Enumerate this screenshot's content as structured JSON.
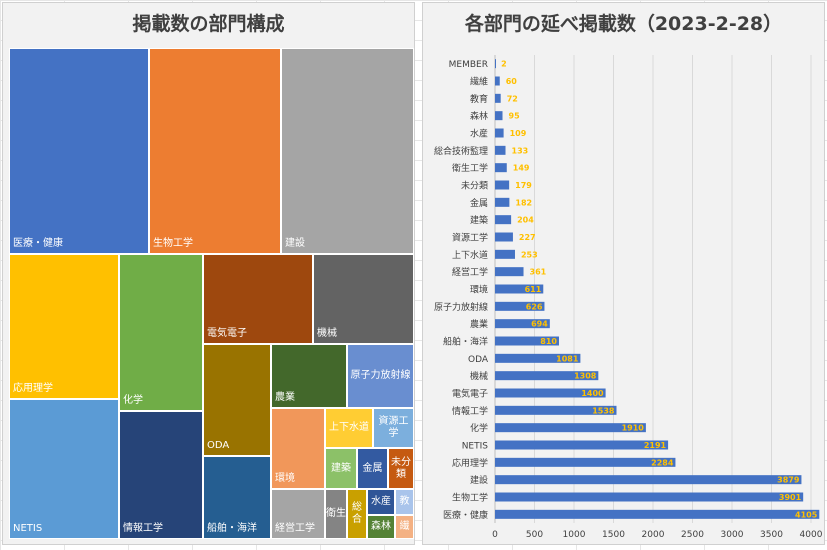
{
  "colors": {
    "background": "#f2f2f2",
    "bar": "#4472c4",
    "data_label": "#ffc000",
    "text": "#404040",
    "gridline": "#d9d9d9"
  },
  "chart_data": [
    {
      "type": "treemap",
      "title": "掲載数の部門構成",
      "labels": [
        "医療・健康",
        "生物工学",
        "建設",
        "応用理学",
        "NETIS",
        "化学",
        "情報工学",
        "電気電子",
        "機械",
        "ODA",
        "船舶・海洋",
        "農業",
        "原子力放射線",
        "環境",
        "上下水道",
        "資源工学",
        "建築",
        "金属",
        "未分類",
        "経営工学",
        "衛生",
        "総合",
        "水産",
        "森林",
        "教",
        "繊"
      ],
      "values": [
        4105,
        3901,
        3879,
        2284,
        2191,
        1910,
        1538,
        1400,
        1308,
        1081,
        810,
        694,
        626,
        611,
        253,
        227,
        204,
        182,
        179,
        361,
        149,
        133,
        109,
        95,
        72,
        60
      ],
      "colors": [
        "#4472c4",
        "#ed7d31",
        "#a5a5a5",
        "#ffc000",
        "#5b9bd5",
        "#70ad47",
        "#264478",
        "#9e480e",
        "#636363",
        "#997300",
        "#255e91",
        "#43682b",
        "#698ed0",
        "#f1975a",
        "#ffcd33",
        "#7cafdd",
        "#8cc168",
        "#335aa1",
        "#c55a11",
        "#a5a5a5",
        "#848484",
        "#c9a000",
        "#2f5597",
        "#548235",
        "#a9c4eb",
        "#f4b183"
      ]
    },
    {
      "type": "bar",
      "orientation": "horizontal",
      "title": "各部門の延べ掲載数（2023-2-28）",
      "categories": [
        "MEMBER",
        "繊維",
        "教育",
        "森林",
        "水産",
        "総合技術監理",
        "衛生工学",
        "未分類",
        "金属",
        "建築",
        "資源工学",
        "上下水道",
        "経営工学",
        "環境",
        "原子力放射線",
        "農業",
        "船舶・海洋",
        "ODA",
        "機械",
        "電気電子",
        "情報工学",
        "化学",
        "NETIS",
        "応用理学",
        "建設",
        "生物工学",
        "医療・健康"
      ],
      "values": [
        2,
        60,
        72,
        95,
        109,
        133,
        149,
        179,
        182,
        204,
        227,
        253,
        361,
        611,
        626,
        694,
        810,
        1081,
        1308,
        1400,
        1538,
        1910,
        2191,
        2284,
        3879,
        3901,
        4105
      ],
      "value_labels": [
        "2",
        "60",
        "72",
        "95",
        "109",
        "133",
        "149",
        "179",
        "182",
        "204",
        "227",
        "253",
        "361",
        "611",
        "626",
        "694",
        "810",
        "1081",
        "1308",
        "1400",
        "1538",
        "1910",
        "2191",
        "2284",
        "3879",
        "3901",
        "4105"
      ],
      "xlim": [
        0,
        4000
      ],
      "xticks": [
        "0",
        "500",
        "1000",
        "1500",
        "2000",
        "2500",
        "3000",
        "3500",
        "4000"
      ],
      "grid": true
    }
  ]
}
